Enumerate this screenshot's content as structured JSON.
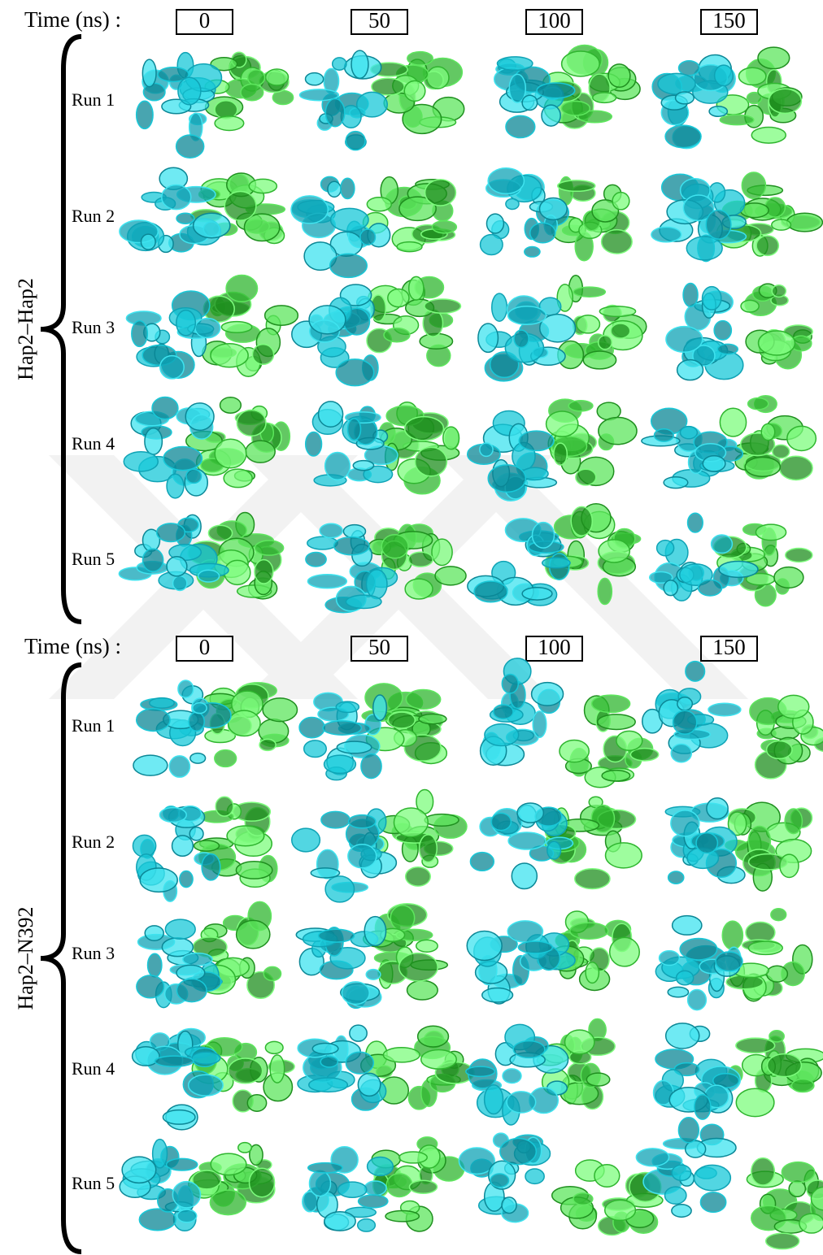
{
  "panels": [
    {
      "time_label": "Time (ns) :",
      "times": [
        "0",
        "50",
        "100",
        "150"
      ],
      "group_label": "Hap2–Hap2",
      "runs": [
        "Run 1",
        "Run 2",
        "Run 3",
        "Run 4",
        "Run 5"
      ]
    },
    {
      "time_label": "Time (ns) :",
      "times": [
        "0",
        "50",
        "100",
        "150"
      ],
      "group_label": "Hap2–N392",
      "runs": [
        "Run 1",
        "Run 2",
        "Run 3",
        "Run 4",
        "Run 5"
      ]
    }
  ]
}
